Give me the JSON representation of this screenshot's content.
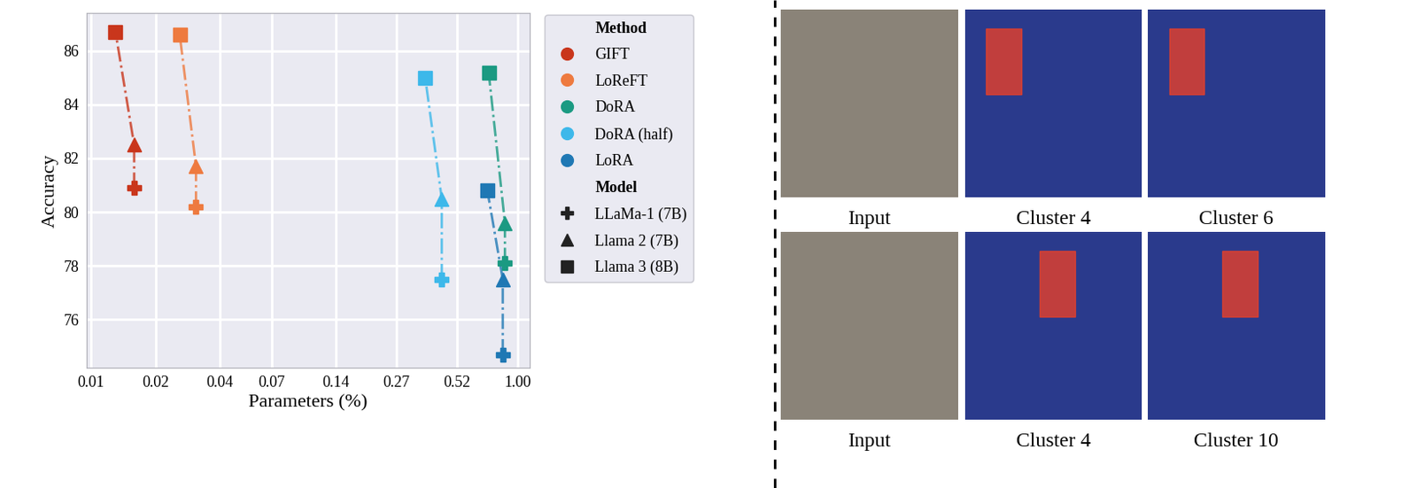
{
  "chart_data": {
    "type": "scatter",
    "xlabel": "Parameters (%)",
    "ylabel": "Accuracy",
    "log": "x",
    "grid": true,
    "legend": "upper left",
    "xlim": [
      0.0095,
      1.14
    ],
    "ylim": [
      74.2,
      87.4
    ],
    "xticks": [
      0.01,
      0.02,
      0.04,
      0.07,
      0.14,
      0.27,
      0.52,
      {
        "value": 1.0,
        "label": "1.00"
      }
    ],
    "yticks": [
      76,
      78,
      80,
      82,
      84,
      86
    ],
    "method_header": "Method",
    "model_header": "Model",
    "models": [
      {
        "name": "LLaMa-1 (7B)",
        "marker": "P"
      },
      {
        "name": "Llama 2 (7B)",
        "marker": "^"
      },
      {
        "name": "Llama 3 (8B)",
        "marker": "s"
      }
    ],
    "series": [
      {
        "name": "GIFT",
        "color": "#c9361c",
        "line_style": "dashdot",
        "x": [
          0.0159,
          0.0159,
          0.013
        ],
        "values": [
          80.9,
          82.5,
          86.7
        ]
      },
      {
        "name": "LoReFT",
        "color": "#ee7a3f",
        "line_style": "dashdot",
        "x": [
          0.031,
          0.031,
          0.026
        ],
        "values": [
          80.2,
          81.7,
          86.6
        ]
      },
      {
        "name": "DoRA",
        "color": "#1b9a82",
        "line_style": "dashdot",
        "x": [
          0.87,
          0.87,
          0.73
        ],
        "values": [
          78.1,
          79.6,
          85.2
        ]
      },
      {
        "name": "DoRA (half)",
        "color": "#3db8ea",
        "line_style": "dashdot",
        "x": [
          0.44,
          0.44,
          0.368
        ],
        "values": [
          77.5,
          80.5,
          85.0
        ]
      },
      {
        "name": "LoRA",
        "color": "#1f78b4",
        "line_style": "dashdot",
        "x": [
          0.85,
          0.85,
          0.72
        ],
        "values": [
          74.7,
          77.5,
          80.8
        ]
      }
    ]
  },
  "images": {
    "rows": [
      [
        "Input",
        "Cluster 4",
        "Cluster 6"
      ],
      [
        "Input",
        "Cluster 4",
        "Cluster 10"
      ]
    ]
  }
}
